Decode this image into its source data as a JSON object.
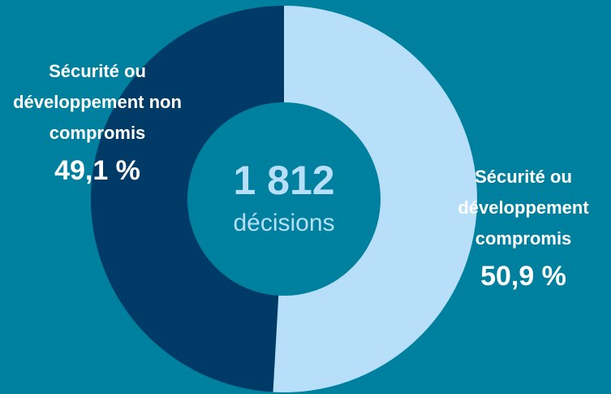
{
  "chart_data": {
    "type": "pie",
    "donut": true,
    "center_title": "1 812",
    "center_subtitle": "décisions",
    "categories": [
      "Sécurité ou développement non compromis",
      "Sécurité ou développement compromis"
    ],
    "values": [
      49.1,
      50.9
    ],
    "value_labels": [
      "49,1 %",
      "50,9 %"
    ],
    "colors": [
      "#003b68",
      "#b8dff9"
    ]
  }
}
